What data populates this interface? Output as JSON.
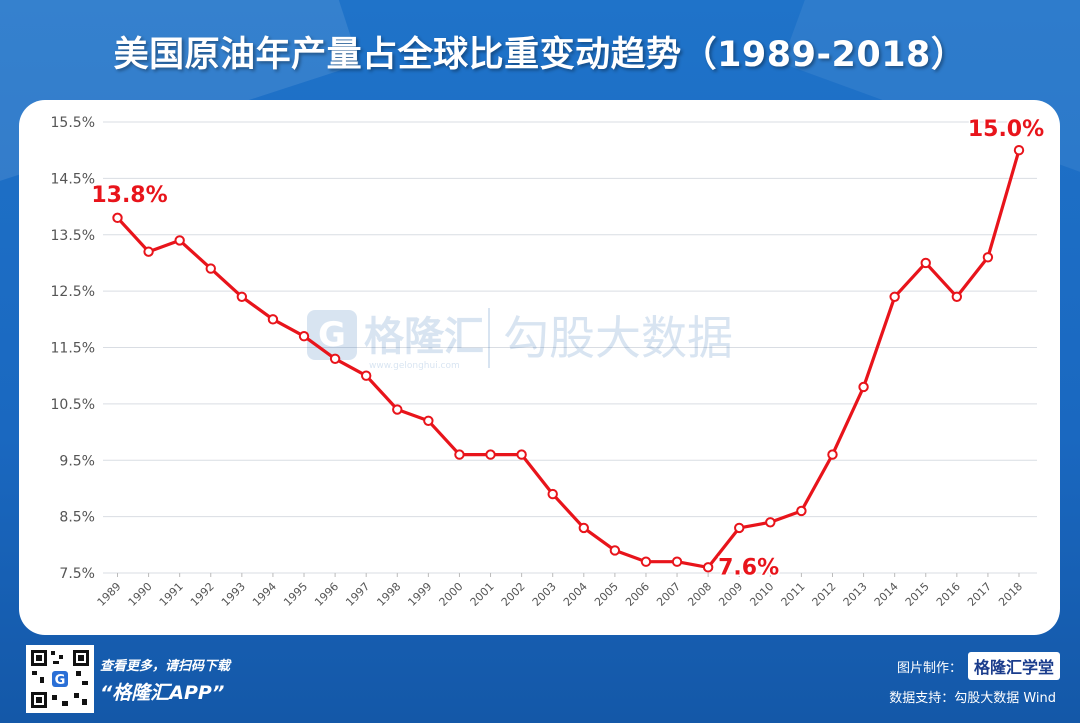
{
  "title": "美国原油年产量占全球比重变动趋势（1989-2018）",
  "watermark": {
    "logo_text": "格隆汇",
    "logo_url_text": "www.gelonghui.com",
    "data_text": "勾股大数据"
  },
  "footer": {
    "promo_line1": "查看更多，请扫码下载",
    "promo_line2": "“格隆汇APP”",
    "credit_label": "图片制作：",
    "credit_brand": "格隆汇学堂",
    "data_source": "数据支持：勾股大数据  Wind"
  },
  "colors": {
    "background": "#1f73c9",
    "line": "#e8141b",
    "annotation": "#e8141b",
    "grid": "#d9dde3",
    "axis_text": "#555555"
  },
  "chart_data": {
    "type": "line",
    "title": "美国原油年产量占全球比重变动趋势（1989-2018）",
    "xlabel": "",
    "ylabel": "",
    "x": [
      "1989",
      "1990",
      "1991",
      "1992",
      "1993",
      "1994",
      "1995",
      "1996",
      "1997",
      "1998",
      "1999",
      "2000",
      "2001",
      "2002",
      "2003",
      "2004",
      "2005",
      "2006",
      "2007",
      "2008",
      "2009",
      "2010",
      "2011",
      "2012",
      "2013",
      "2014",
      "2015",
      "2016",
      "2017",
      "2018"
    ],
    "series": [
      {
        "values": [
          13.8,
          13.2,
          13.4,
          12.9,
          12.4,
          12.0,
          11.7,
          11.3,
          11.0,
          10.4,
          10.2,
          9.6,
          9.6,
          9.6,
          8.9,
          8.3,
          7.9,
          7.7,
          7.7,
          7.6,
          8.3,
          8.4,
          8.6,
          9.6,
          10.8,
          12.4,
          13.0,
          12.4,
          13.1,
          15.0
        ]
      }
    ],
    "ylim": [
      7.5,
      15.5
    ],
    "yticks": [
      "7.5%",
      "8.5%",
      "9.5%",
      "10.5%",
      "11.5%",
      "12.5%",
      "13.5%",
      "14.5%",
      "15.5%"
    ],
    "ytick_values": [
      7.5,
      8.5,
      9.5,
      10.5,
      11.5,
      12.5,
      13.5,
      14.5,
      15.5
    ],
    "annotations": [
      {
        "year": "1989",
        "text": "13.8%",
        "position": "above"
      },
      {
        "year": "2008",
        "text": "7.6%",
        "position": "right"
      },
      {
        "year": "2018",
        "text": "15.0%",
        "position": "above"
      }
    ],
    "grid": true,
    "legend": "none"
  }
}
